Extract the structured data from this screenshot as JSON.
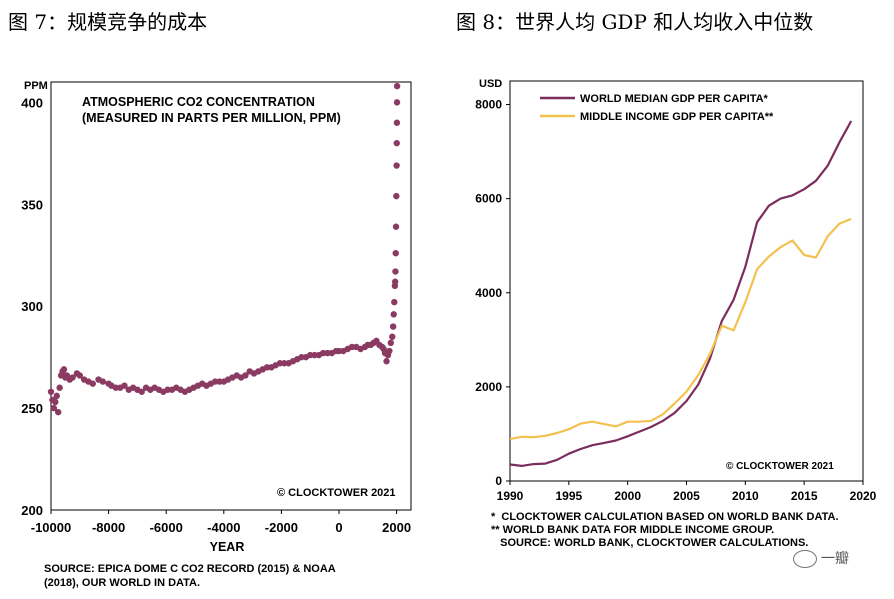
{
  "titles": {
    "fig7": "图 7：规模竞争的成本",
    "fig8": "图 8：世界人均 GDP 和人均收入中位数"
  },
  "chart_data": [
    {
      "type": "scatter",
      "title": "ATMOSPHERIC CO2 CONCENTRATION",
      "subtitle": "(MEASURED IN PARTS PER MILLION, PPM)",
      "xlabel": "YEAR",
      "ylabel": "PPM",
      "xlim": [
        -10000,
        2500
      ],
      "ylim": [
        200,
        410
      ],
      "xticks": [
        -10000,
        -8000,
        -6000,
        -4000,
        -2000,
        0,
        2000
      ],
      "yticks": [
        200,
        250,
        300,
        350,
        400
      ],
      "color": "#8B3A62",
      "credit": "© CLOCKTOWER 2021",
      "source": [
        "SOURCE: EPICA DOME C CO2 RECORD (2015) & NOAA",
        "(2018), OUR WORLD IN DATA."
      ],
      "points": [
        [
          -10000,
          258
        ],
        [
          -9950,
          254
        ],
        [
          -9900,
          250
        ],
        [
          -9850,
          253
        ],
        [
          -9800,
          256
        ],
        [
          -9750,
          248
        ],
        [
          -9700,
          260
        ],
        [
          -9650,
          266
        ],
        [
          -9600,
          268
        ],
        [
          -9550,
          269
        ],
        [
          -9500,
          265
        ],
        [
          -9450,
          266
        ],
        [
          -9350,
          264
        ],
        [
          -9250,
          265
        ],
        [
          -9100,
          267
        ],
        [
          -9000,
          266
        ],
        [
          -8850,
          264
        ],
        [
          -8700,
          263
        ],
        [
          -8550,
          262
        ],
        [
          -8350,
          264
        ],
        [
          -8200,
          263
        ],
        [
          -8000,
          262
        ],
        [
          -7900,
          261
        ],
        [
          -7750,
          260
        ],
        [
          -7600,
          260
        ],
        [
          -7450,
          261
        ],
        [
          -7300,
          259
        ],
        [
          -7150,
          260
        ],
        [
          -7000,
          259
        ],
        [
          -6850,
          258
        ],
        [
          -6700,
          260
        ],
        [
          -6550,
          259
        ],
        [
          -6400,
          260
        ],
        [
          -6250,
          259
        ],
        [
          -6100,
          258
        ],
        [
          -5950,
          259
        ],
        [
          -5800,
          259
        ],
        [
          -5650,
          260
        ],
        [
          -5500,
          259
        ],
        [
          -5350,
          258
        ],
        [
          -5200,
          259
        ],
        [
          -5050,
          260
        ],
        [
          -4900,
          261
        ],
        [
          -4750,
          262
        ],
        [
          -4600,
          261
        ],
        [
          -4450,
          262
        ],
        [
          -4300,
          263
        ],
        [
          -4150,
          263
        ],
        [
          -4000,
          263
        ],
        [
          -3850,
          264
        ],
        [
          -3700,
          265
        ],
        [
          -3550,
          266
        ],
        [
          -3400,
          265
        ],
        [
          -3250,
          266
        ],
        [
          -3100,
          268
        ],
        [
          -2950,
          267
        ],
        [
          -2800,
          268
        ],
        [
          -2650,
          269
        ],
        [
          -2500,
          270
        ],
        [
          -2350,
          270
        ],
        [
          -2200,
          271
        ],
        [
          -2050,
          272
        ],
        [
          -1900,
          272
        ],
        [
          -1750,
          272
        ],
        [
          -1600,
          273
        ],
        [
          -1450,
          274
        ],
        [
          -1300,
          275
        ],
        [
          -1150,
          275
        ],
        [
          -1000,
          276
        ],
        [
          -850,
          276
        ],
        [
          -700,
          276
        ],
        [
          -550,
          277
        ],
        [
          -400,
          277
        ],
        [
          -250,
          277
        ],
        [
          -100,
          278
        ],
        [
          0,
          278
        ],
        [
          150,
          278
        ],
        [
          300,
          279
        ],
        [
          450,
          280
        ],
        [
          600,
          280
        ],
        [
          750,
          279
        ],
        [
          900,
          280
        ],
        [
          1000,
          281
        ],
        [
          1100,
          281
        ],
        [
          1200,
          282
        ],
        [
          1300,
          283
        ],
        [
          1400,
          281
        ],
        [
          1500,
          280
        ],
        [
          1550,
          279
        ],
        [
          1600,
          277
        ],
        [
          1650,
          273
        ],
        [
          1700,
          276
        ],
        [
          1750,
          278
        ],
        [
          1800,
          282
        ],
        [
          1850,
          285
        ],
        [
          1880,
          290
        ],
        [
          1900,
          296
        ],
        [
          1920,
          302
        ],
        [
          1940,
          310
        ],
        [
          1950,
          312
        ],
        [
          1960,
          317
        ],
        [
          1970,
          326
        ],
        [
          1980,
          339
        ],
        [
          1990,
          354
        ],
        [
          2000,
          369
        ],
        [
          2005,
          380
        ],
        [
          2010,
          390
        ],
        [
          2015,
          400
        ],
        [
          2018,
          408
        ]
      ]
    },
    {
      "type": "line",
      "x": [
        1990,
        1991,
        1992,
        1993,
        1994,
        1995,
        1996,
        1997,
        1998,
        1999,
        2000,
        2001,
        2002,
        2003,
        2004,
        2005,
        2006,
        2007,
        2008,
        2009,
        2010,
        2011,
        2012,
        2013,
        2014,
        2015,
        2016,
        2017,
        2018,
        2019
      ],
      "series": [
        {
          "name": "WORLD MEDIAN GDP PER CAPITA*",
          "color": "#7B2D5C",
          "values": [
            350,
            320,
            360,
            370,
            450,
            580,
            680,
            760,
            810,
            860,
            950,
            1050,
            1150,
            1280,
            1450,
            1700,
            2050,
            2600,
            3400,
            3850,
            4550,
            5500,
            5850,
            6000,
            6070,
            6200,
            6380,
            6700,
            7200,
            7650
          ]
        },
        {
          "name": "MIDDLE INCOME GDP PER CAPITA**",
          "color": "#F2C14E",
          "values": [
            890,
            940,
            930,
            960,
            1020,
            1100,
            1220,
            1260,
            1210,
            1160,
            1260,
            1260,
            1280,
            1420,
            1650,
            1900,
            2250,
            2700,
            3300,
            3200,
            3800,
            4500,
            4770,
            4970,
            5110,
            4800,
            4750,
            5200,
            5470,
            5570
          ]
        }
      ],
      "ylabel": "USD",
      "xlim": [
        1990,
        2020
      ],
      "ylim": [
        0,
        8500
      ],
      "xticks": [
        1990,
        1995,
        2000,
        2005,
        2010,
        2015,
        2020
      ],
      "yticks": [
        0,
        2000,
        4000,
        6000,
        8000
      ],
      "credit": "© CLOCKTOWER 2021",
      "footnotes": [
        "*  CLOCKTOWER CALCULATION BASED ON WORLD BANK DATA.",
        "** WORLD BANK DATA FOR MIDDLE INCOME GROUP.",
        "   SOURCE: WORLD BANK, CLOCKTOWER CALCULATIONS."
      ]
    }
  ],
  "watermark": "一瓣"
}
